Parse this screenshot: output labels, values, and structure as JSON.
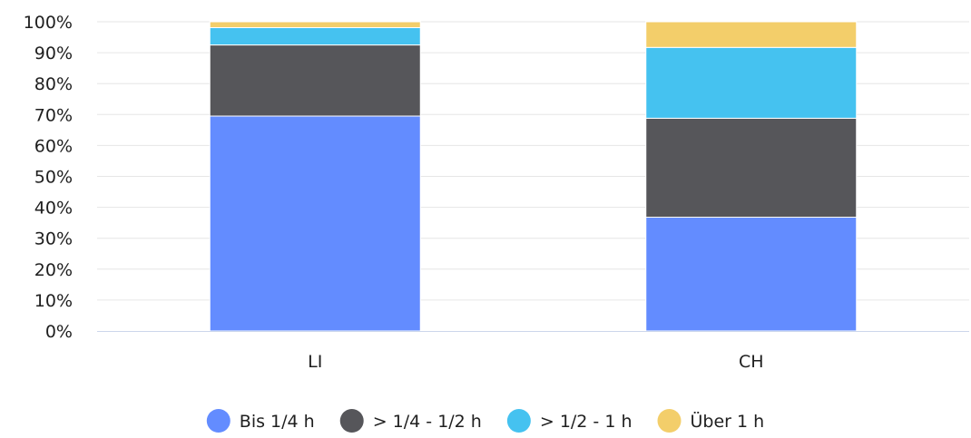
{
  "chart_data": {
    "type": "bar",
    "stacked": true,
    "categories": [
      "LI",
      "CH"
    ],
    "series": [
      {
        "name": "Bis 1/4 h",
        "color": "#638cff",
        "values": [
          69.5,
          36.8
        ]
      },
      {
        "name": "> 1/4 - 1/2 h",
        "color": "#56565a",
        "values": [
          23.0,
          32.0
        ]
      },
      {
        "name": "> 1/2 - 1 h",
        "color": "#45c2f0",
        "values": [
          5.6,
          22.9
        ]
      },
      {
        "name": "Über 1 h",
        "color": "#f3ce6a",
        "values": [
          1.9,
          8.3
        ]
      }
    ],
    "ylim": [
      0,
      100
    ],
    "yticks": [
      "0%",
      "10%",
      "20%",
      "30%",
      "40%",
      "50%",
      "60%",
      "70%",
      "80%",
      "90%",
      "100%"
    ],
    "grid": true,
    "legend_position": "bottom-center"
  }
}
